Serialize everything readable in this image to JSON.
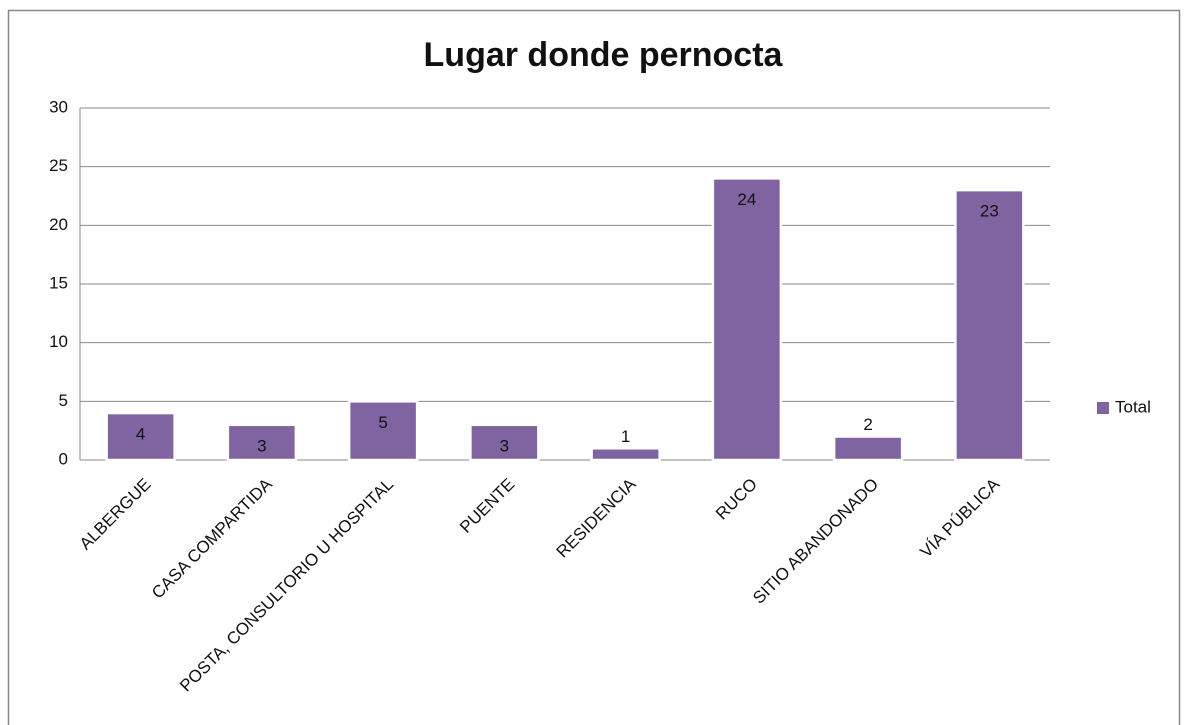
{
  "chart_data": {
    "type": "bar",
    "title": "Lugar donde pernocta",
    "categories": [
      "ALBERGUE",
      "CASA COMPARTIDA",
      "POSTA, CONSULTORIO U HOSPITAL",
      "PUENTE",
      "RESIDENCIA",
      "RUCO",
      "SITIO ABANDONADO",
      "VÍA PÚBLICA"
    ],
    "series": [
      {
        "name": "Total",
        "color": "#8064a2",
        "values": [
          4,
          3,
          5,
          3,
          1,
          24,
          2,
          23
        ]
      }
    ],
    "ylim": [
      0,
      30
    ],
    "yticks": [
      0,
      5,
      10,
      15,
      20,
      25,
      30
    ],
    "grid": true,
    "legend": "right",
    "data_labels": true
  }
}
